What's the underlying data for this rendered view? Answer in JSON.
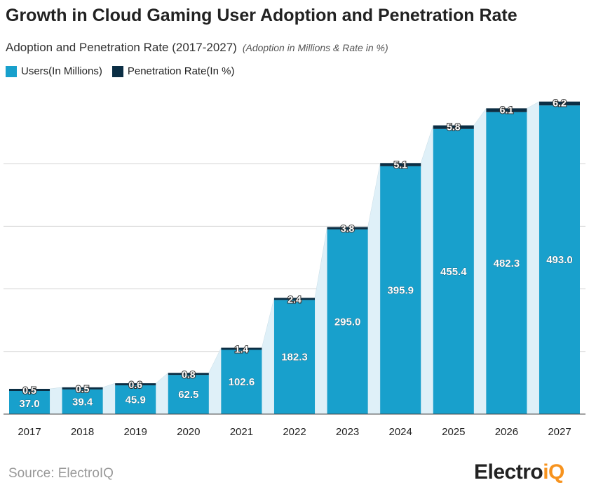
{
  "chart_data": {
    "type": "bar",
    "stacked": true,
    "title": "Growth in Cloud Gaming User Adoption and Penetration Rate",
    "subtitle": "Adoption and Penetration Rate (2017-2027)",
    "note": "(Adoption in Millions & Rate in %)",
    "categories": [
      "2017",
      "2018",
      "2019",
      "2020",
      "2021",
      "2022",
      "2023",
      "2024",
      "2025",
      "2026",
      "2027"
    ],
    "series": [
      {
        "name": "Users(In Millions)",
        "color": "#18a0cc",
        "values": [
          37.0,
          39.4,
          45.9,
          62.5,
          102.6,
          182.3,
          295.0,
          395.9,
          455.4,
          482.3,
          493.0
        ]
      },
      {
        "name": "Penetration Rate(In %)",
        "color": "#0b2e44",
        "values": [
          0.5,
          0.5,
          0.6,
          0.8,
          1.4,
          2.4,
          3.8,
          5.1,
          5.8,
          6.1,
          6.2
        ]
      }
    ],
    "ylim": [
      0,
      500
    ],
    "grid": true,
    "legend": "top-left",
    "area_color": "#dff0f8"
  },
  "source": "Source: ElectroIQ",
  "logo": {
    "text_main": "Electro",
    "text_accent": "iQ",
    "accent_color": "#f7931e"
  }
}
